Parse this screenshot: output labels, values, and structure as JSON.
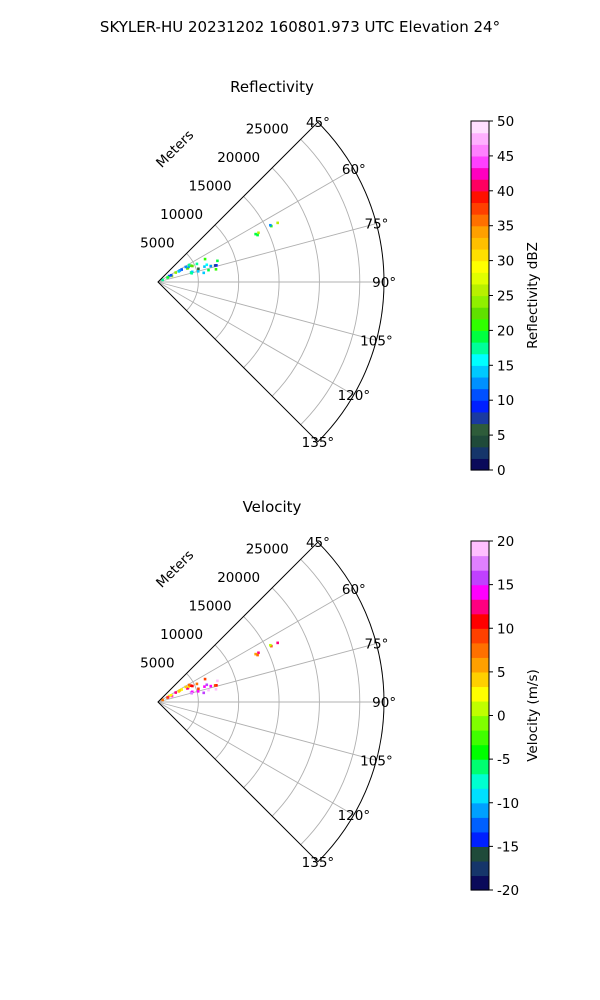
{
  "figure": {
    "suptitle": "SKYLER-HU  20231202  160801.973 UTC Elevation 24°"
  },
  "chart_data": [
    {
      "type": "polar-sector",
      "title": "Reflectivity",
      "range_label": "Meters",
      "range_ticks": [
        5000,
        10000,
        15000,
        20000,
        25000
      ],
      "rlim": [
        0,
        28000
      ],
      "theta_range_deg": [
        45,
        135
      ],
      "theta_ticks": [
        "45°",
        "60°",
        "75°",
        "90°",
        "105°",
        "120°",
        "135°"
      ],
      "grid": true,
      "colorbar": {
        "label": "Reflectivity dBZ",
        "ticks": [
          "0",
          "5",
          "10",
          "15",
          "20",
          "25",
          "30",
          "35",
          "40",
          "45",
          "50"
        ],
        "range": [
          0,
          50
        ],
        "colors": [
          "#0a0a5a",
          "#15356a",
          "#1f4a3a",
          "#2e5c3a",
          "#1a3aa0",
          "#0020ff",
          "#0050ff",
          "#0090ff",
          "#00c8ff",
          "#00ffff",
          "#00ff99",
          "#00ff40",
          "#30ff00",
          "#60e000",
          "#90f000",
          "#b8f000",
          "#e0ff00",
          "#ffff00",
          "#ffe000",
          "#ffc000",
          "#ffa000",
          "#ff7000",
          "#ff4000",
          "#ff1000",
          "#ff0060",
          "#ff00c0",
          "#ff40ff",
          "#ff80ff",
          "#ffb0ff",
          "#ffe0ff"
        ]
      },
      "echoes": [
        {
          "az": [
            60,
            67
          ],
          "r": [
            500,
            7500
          ],
          "value": 18
        },
        {
          "az": [
            70,
            79
          ],
          "r": [
            4000,
            8200
          ],
          "value": 14
        },
        {
          "az": [
            63,
            65
          ],
          "r": [
            10500,
            18000
          ],
          "value": 19
        }
      ]
    },
    {
      "type": "polar-sector",
      "title": "Velocity",
      "range_label": "Meters",
      "range_ticks": [
        5000,
        10000,
        15000,
        20000,
        25000
      ],
      "rlim": [
        0,
        28000
      ],
      "theta_range_deg": [
        45,
        135
      ],
      "theta_ticks": [
        "45°",
        "60°",
        "75°",
        "90°",
        "105°",
        "120°",
        "135°"
      ],
      "grid": true,
      "colorbar": {
        "label": "Velocity (m/s)",
        "ticks": [
          "-20",
          "-15",
          "-10",
          "-5",
          "0",
          "5",
          "10",
          "15",
          "20"
        ],
        "range": [
          -20,
          20
        ],
        "colors": [
          "#0a0a5a",
          "#15356a",
          "#1f4a3a",
          "#0020ff",
          "#0060ff",
          "#00a0ff",
          "#00e0ff",
          "#00ffd0",
          "#00ff70",
          "#00ff00",
          "#40ff00",
          "#80ff00",
          "#c0ff00",
          "#ffff00",
          "#ffd000",
          "#ffa000",
          "#ff7000",
          "#ff4000",
          "#ff0000",
          "#ff0080",
          "#ff00ff",
          "#c040ff",
          "#e080ff",
          "#ffc0ff"
        ]
      },
      "echoes": [
        {
          "az": [
            60,
            67
          ],
          "r": [
            500,
            7500
          ],
          "value": 8
        },
        {
          "az": [
            70,
            79
          ],
          "r": [
            4000,
            8200
          ],
          "value": 15
        },
        {
          "az": [
            63,
            65
          ],
          "r": [
            10500,
            18000
          ],
          "value": 7
        }
      ]
    }
  ]
}
